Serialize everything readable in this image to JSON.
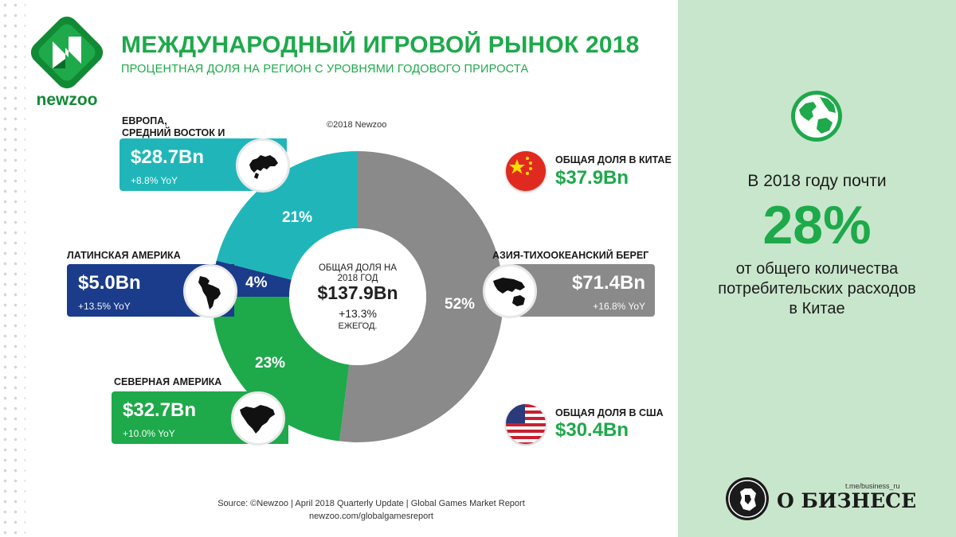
{
  "brand": {
    "logo_text": "newzoo"
  },
  "header": {
    "title": "МЕЖДУНАРОДНЫЙ ИГРОВОЙ РЫНОК 2018",
    "subtitle": "ПРОЦЕНТНАЯ ДОЛЯ НА РЕГИОН С УРОВНЯМИ ГОДОВОГО ПРИРОСТА",
    "copyright": "©2018 Newzoo"
  },
  "colors": {
    "green": "#1ea94b",
    "teal": "#20b6b9",
    "navy": "#1b3c8a",
    "gray": "#8a8a8a",
    "panel_bg": "#c8e6cb"
  },
  "chart_data": {
    "type": "pie",
    "title": "МЕЖДУНАРОДНЫЙ ИГРОВОЙ РЫНОК 2018",
    "center": {
      "label_line1": "ОБЩАЯ ДОЛЯ НА",
      "label_line2": "2018 ГОД",
      "total": "$137.9Bn",
      "growth": "+13.3%",
      "growth_label": "ЕЖЕГОД."
    },
    "slices": [
      {
        "name": "Азия-Тихоокеанский берег",
        "share": 52,
        "label": "52%",
        "revenue_bn": 71.4,
        "color": "#8a8a8a"
      },
      {
        "name": "Северная Америка",
        "share": 23,
        "label": "23%",
        "revenue_bn": 32.7,
        "color": "#1ea94b"
      },
      {
        "name": "Латинская Америка",
        "share": 4,
        "label": "4%",
        "revenue_bn": 5.0,
        "color": "#1b3c8a"
      },
      {
        "name": "Европа, Средний Восток и Африка",
        "share": 21,
        "label": "21%",
        "revenue_bn": 28.7,
        "color": "#20b6b9"
      }
    ]
  },
  "regions": {
    "europe": {
      "label_line1": "ЕВРОПА,",
      "label_line2": "СРЕДНИЙ ВОСТОК И",
      "value": "$28.7Bn",
      "yoy": "+8.8% YoY"
    },
    "latam": {
      "label": "ЛАТИНСКАЯ АМЕРИКА",
      "value": "$5.0Bn",
      "yoy": "+13.5% YoY"
    },
    "namerica": {
      "label": "СЕВЕРНАЯ АМЕРИКА",
      "value": "$32.7Bn",
      "yoy": "+10.0% YoY"
    },
    "apac": {
      "label": "АЗИЯ-ТИХООКЕАНСКИЙ БЕРЕГ",
      "value": "$71.4Bn",
      "yoy": "+16.8% YoY"
    }
  },
  "china": {
    "label": "ОБЩАЯ ДОЛЯ В КИТАЕ",
    "value": "$37.9Bn"
  },
  "usa": {
    "label": "ОБЩАЯ ДОЛЯ В США",
    "value": "$30.4Bn"
  },
  "footer": {
    "source": "Source: ©Newzoo | April 2018 Quarterly Update | Global Games Market Report",
    "url": "newzoo.com/globalgamesreport"
  },
  "side_panel": {
    "line1": "В 2018 году почти",
    "big": "28%",
    "desc_line1": "от общего количества",
    "desc_line2": "потребительских расходов",
    "desc_line3": "в Китае",
    "brand_name": "О БИЗНЕСЕ",
    "brand_handle": "t.me/business_ru"
  }
}
